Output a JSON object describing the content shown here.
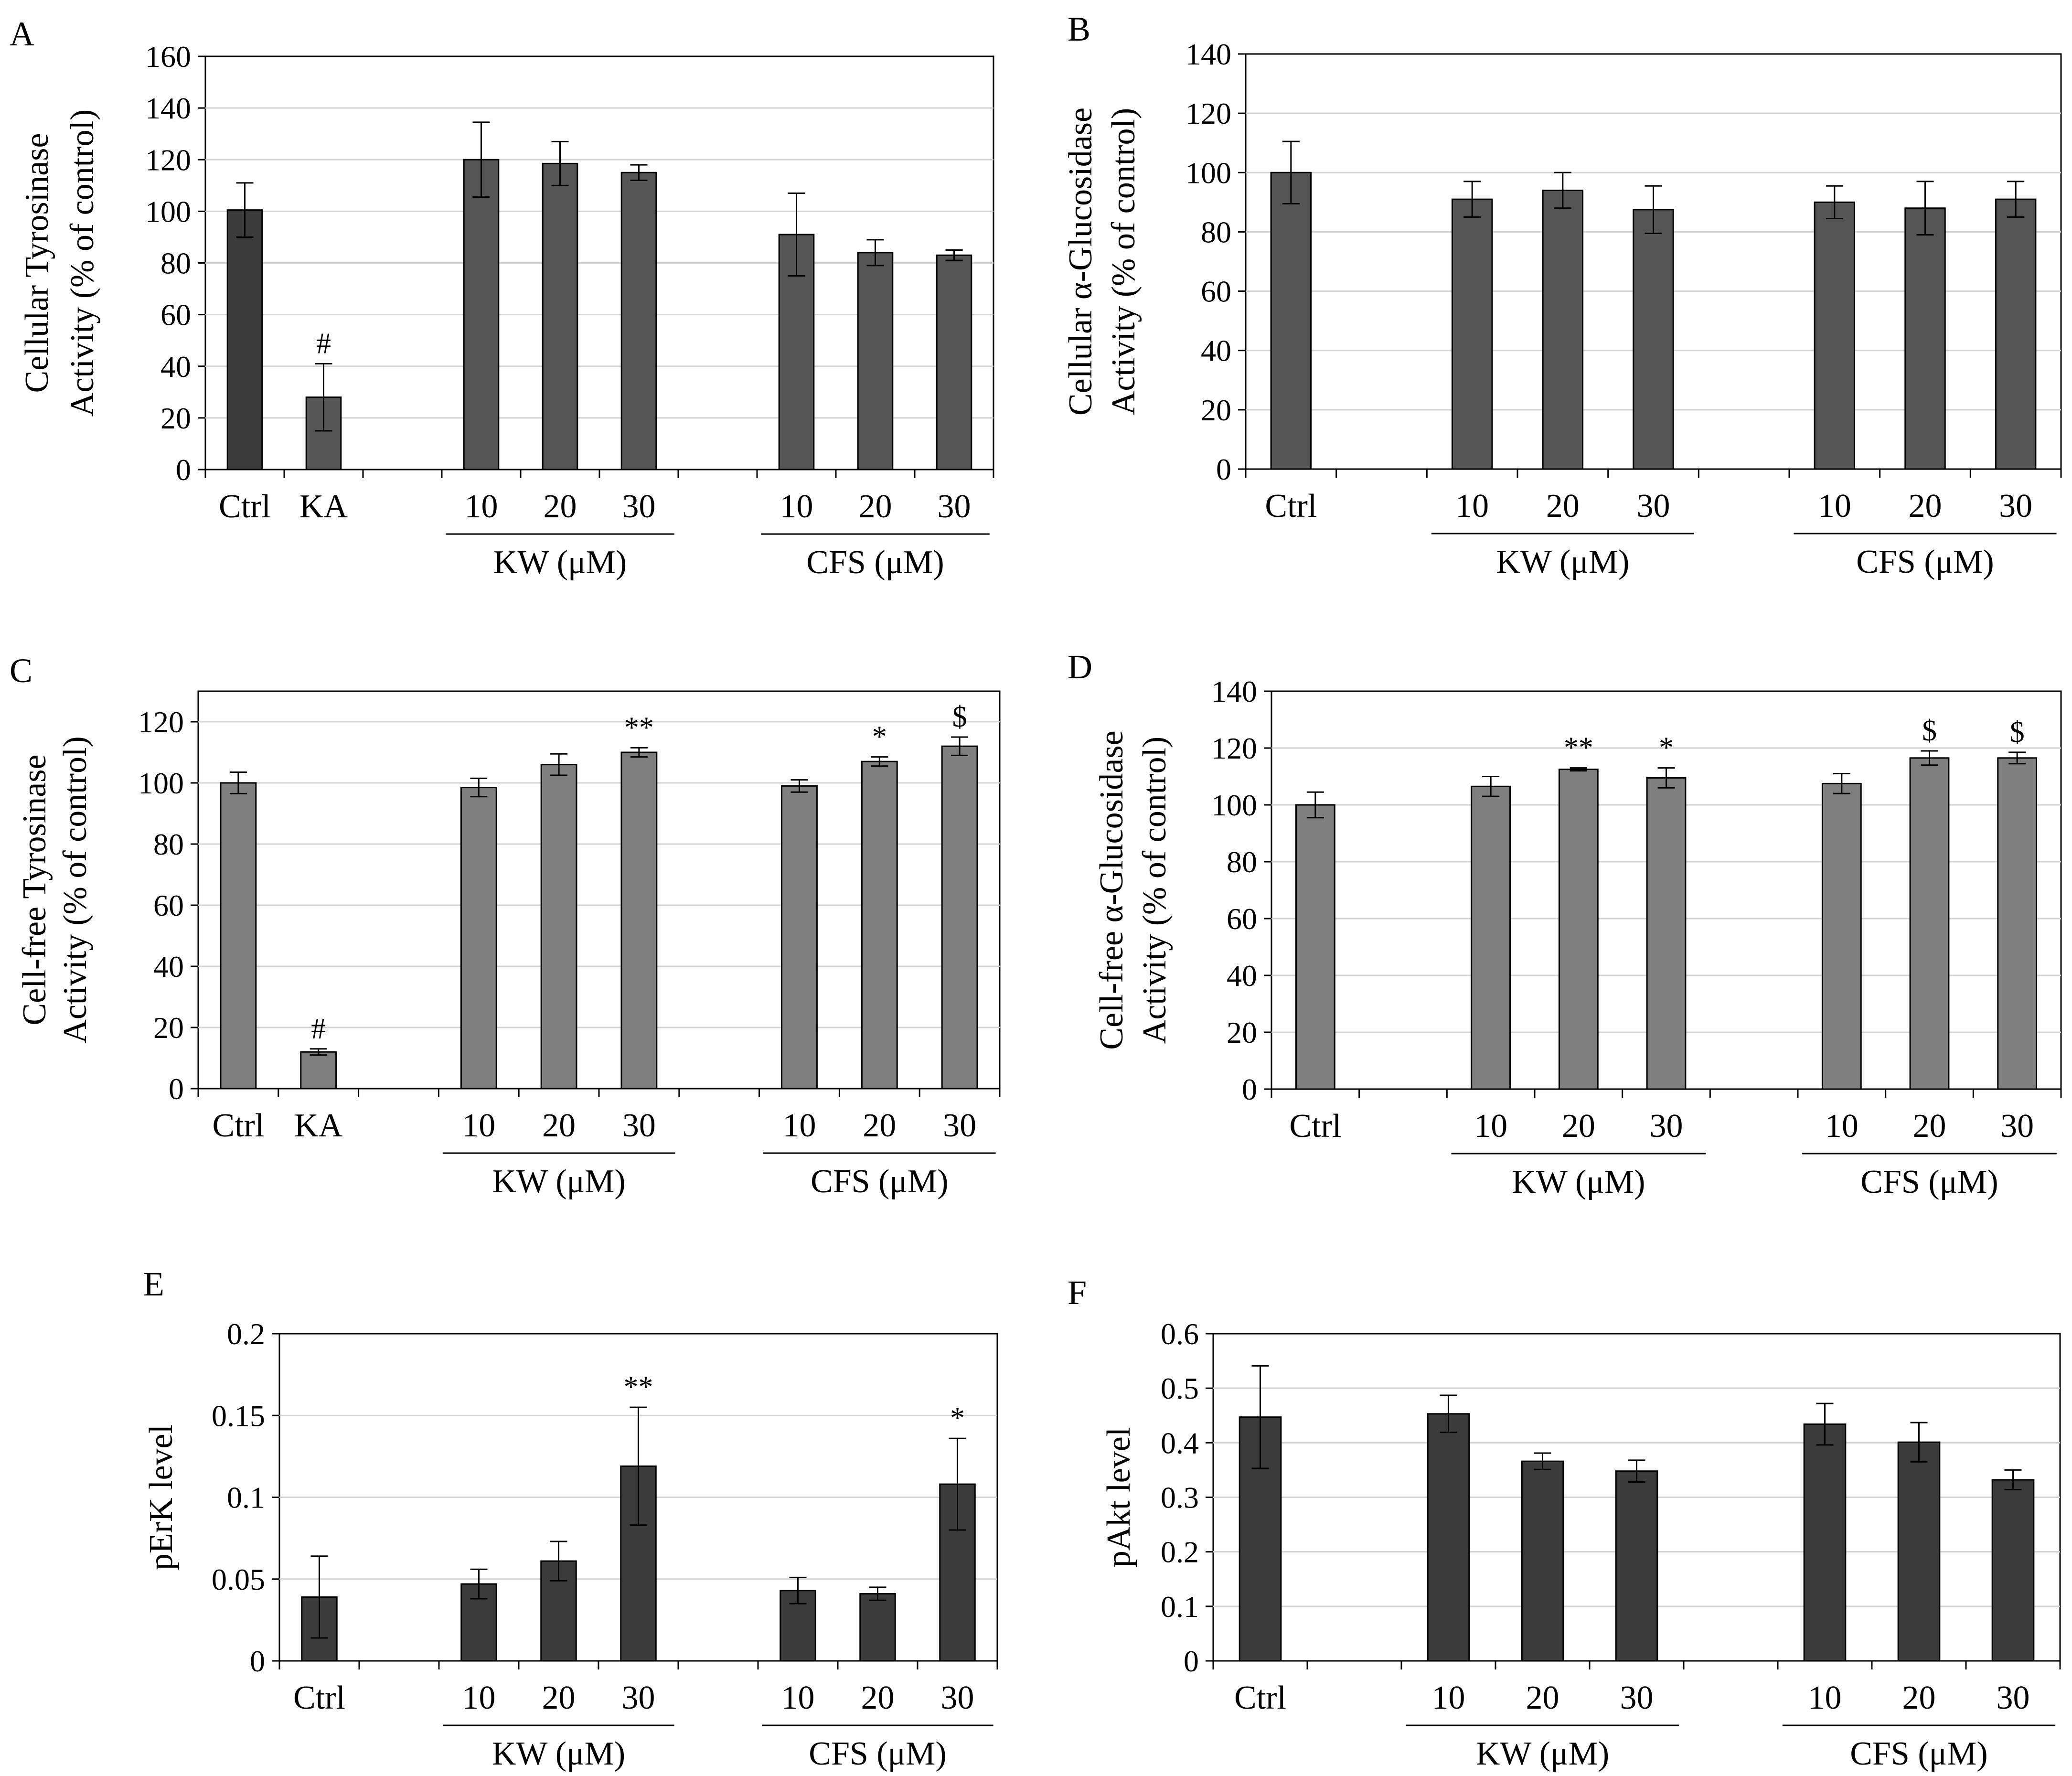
{
  "figure": {
    "panel_letters": [
      "A",
      "B",
      "C",
      "D",
      "E",
      "F"
    ]
  },
  "chart_data": [
    {
      "panel": "A",
      "type": "bar",
      "ylabel_lines": [
        "Cellular Tyrosinase",
        "Activity (% of control)"
      ],
      "ylim": [
        0,
        160
      ],
      "yticks": [
        0,
        20,
        40,
        60,
        80,
        100,
        120,
        140,
        160
      ],
      "ytick_labels": [
        "0",
        "20",
        "40",
        "60",
        "80",
        "100",
        "120",
        "140",
        "160"
      ],
      "grid": true,
      "bar_color": "#555555",
      "categories": [
        "Ctrl",
        "KA",
        "",
        "10",
        "20",
        "30",
        "",
        "10",
        "20",
        "30"
      ],
      "values": [
        100.5,
        28,
        null,
        120,
        118.5,
        115,
        null,
        91,
        84,
        83
      ],
      "errors": [
        10.5,
        13,
        null,
        14.5,
        8.5,
        3,
        null,
        16,
        5,
        2
      ],
      "bar_colors": [
        "#3b3b3b",
        "#555555",
        null,
        "#555555",
        "#555555",
        "#555555",
        null,
        "#555555",
        "#555555",
        "#555555"
      ],
      "annotations": [
        null,
        "#",
        null,
        null,
        null,
        null,
        null,
        null,
        null,
        null
      ],
      "groups": [
        {
          "label": "KW (μM)",
          "from": 3,
          "to": 5
        },
        {
          "label": "CFS (μM)",
          "from": 7,
          "to": 9
        }
      ]
    },
    {
      "panel": "B",
      "type": "bar",
      "ylabel_lines": [
        "Cellular α-Glucosidase",
        "Activity (% of control)"
      ],
      "ylim": [
        0,
        140
      ],
      "yticks": [
        0,
        20,
        40,
        60,
        80,
        100,
        120,
        140
      ],
      "ytick_labels": [
        "0",
        "20",
        "40",
        "60",
        "80",
        "100",
        "120",
        "140"
      ],
      "grid": true,
      "bar_color": "#555555",
      "categories": [
        "Ctrl",
        "",
        "10",
        "20",
        "30",
        "",
        "10",
        "20",
        "30"
      ],
      "values": [
        100,
        null,
        91,
        94,
        87.5,
        null,
        90,
        88,
        91
      ],
      "errors": [
        10.5,
        null,
        6,
        6,
        8,
        null,
        5.5,
        9,
        6
      ],
      "annotations": [
        null,
        null,
        null,
        null,
        null,
        null,
        null,
        null,
        null
      ],
      "groups": [
        {
          "label": "KW (μM)",
          "from": 2,
          "to": 4
        },
        {
          "label": "CFS (μM)",
          "from": 6,
          "to": 8
        }
      ]
    },
    {
      "panel": "C",
      "type": "bar",
      "ylabel_lines": [
        "Cell-free Tyrosinase",
        "Activity (% of control)"
      ],
      "ylim": [
        0,
        130
      ],
      "yticks": [
        0,
        20,
        40,
        60,
        80,
        100,
        120
      ],
      "ytick_labels": [
        "0",
        "20",
        "40",
        "60",
        "80",
        "100",
        "120"
      ],
      "grid": true,
      "bar_color": "#7f7f7f",
      "categories": [
        "Ctrl",
        "KA",
        "",
        "10",
        "20",
        "30",
        "",
        "10",
        "20",
        "30"
      ],
      "values": [
        100,
        12,
        null,
        98.5,
        106,
        110,
        null,
        99,
        107,
        112
      ],
      "errors": [
        3.5,
        1,
        null,
        3,
        3.5,
        1.5,
        null,
        2,
        1.5,
        3
      ],
      "annotations": [
        null,
        "#",
        null,
        null,
        null,
        "**",
        null,
        null,
        "*",
        "$"
      ],
      "groups": [
        {
          "label": "KW (μM)",
          "from": 3,
          "to": 5
        },
        {
          "label": "CFS (μM)",
          "from": 7,
          "to": 9
        }
      ]
    },
    {
      "panel": "D",
      "type": "bar",
      "ylabel_lines": [
        "Cell-free α-Glucosidase",
        "Activity (% of control)"
      ],
      "ylim": [
        0,
        140
      ],
      "yticks": [
        0,
        20,
        40,
        60,
        80,
        100,
        120,
        140
      ],
      "ytick_labels": [
        "0",
        "20",
        "40",
        "60",
        "80",
        "100",
        "120",
        "140"
      ],
      "grid": true,
      "bar_color": "#7f7f7f",
      "categories": [
        "Ctrl",
        "",
        "10",
        "20",
        "30",
        "",
        "10",
        "20",
        "30"
      ],
      "values": [
        100,
        null,
        106.5,
        112.5,
        109.5,
        null,
        107.5,
        116.5,
        116.5
      ],
      "errors": [
        4.5,
        null,
        3.5,
        0.5,
        3.5,
        null,
        3.5,
        2.5,
        2
      ],
      "annotations": [
        null,
        null,
        null,
        "**",
        "*",
        null,
        null,
        "$",
        "$"
      ],
      "groups": [
        {
          "label": "KW (μM)",
          "from": 2,
          "to": 4
        },
        {
          "label": "CFS (μM)",
          "from": 6,
          "to": 8
        }
      ]
    },
    {
      "panel": "E",
      "type": "bar",
      "ylabel_lines": [
        "pErK level"
      ],
      "ylim": [
        0,
        0.2
      ],
      "yticks": [
        0,
        0.05,
        0.1,
        0.15,
        0.2
      ],
      "ytick_labels": [
        "0",
        "0.05",
        "0.1",
        "0.15",
        "0.2"
      ],
      "grid": true,
      "bar_color": "#3b3b3b",
      "categories": [
        "Ctrl",
        "",
        "10",
        "20",
        "30",
        "",
        "10",
        "20",
        "30"
      ],
      "values": [
        0.039,
        null,
        0.047,
        0.061,
        0.119,
        null,
        0.043,
        0.041,
        0.108
      ],
      "errors": [
        0.025,
        null,
        0.009,
        0.012,
        0.036,
        null,
        0.008,
        0.004,
        0.028
      ],
      "annotations": [
        null,
        null,
        null,
        null,
        "**",
        null,
        null,
        null,
        "*"
      ],
      "groups": [
        {
          "label": "KW (μM)",
          "from": 2,
          "to": 4
        },
        {
          "label": "CFS (μM)",
          "from": 6,
          "to": 8
        }
      ]
    },
    {
      "panel": "F",
      "type": "bar",
      "ylabel_lines": [
        "pAkt level"
      ],
      "ylim": [
        0,
        0.6
      ],
      "yticks": [
        0,
        0.1,
        0.2,
        0.3,
        0.4,
        0.5,
        0.6
      ],
      "ytick_labels": [
        "0",
        "0.1",
        "0.2",
        "0.3",
        "0.4",
        "0.5",
        "0.6"
      ],
      "grid": true,
      "bar_color": "#3b3b3b",
      "categories": [
        "Ctrl",
        "",
        "10",
        "20",
        "30",
        "",
        "10",
        "20",
        "30"
      ],
      "values": [
        0.447,
        null,
        0.453,
        0.366,
        0.348,
        null,
        0.434,
        0.401,
        0.332
      ],
      "errors": [
        0.094,
        null,
        0.034,
        0.015,
        0.02,
        null,
        0.038,
        0.036,
        0.018
      ],
      "annotations": [
        null,
        null,
        null,
        null,
        null,
        null,
        null,
        null,
        null
      ],
      "groups": [
        {
          "label": "KW (μM)",
          "from": 2,
          "to": 4
        },
        {
          "label": "CFS (μM)",
          "from": 6,
          "to": 8
        }
      ]
    }
  ]
}
